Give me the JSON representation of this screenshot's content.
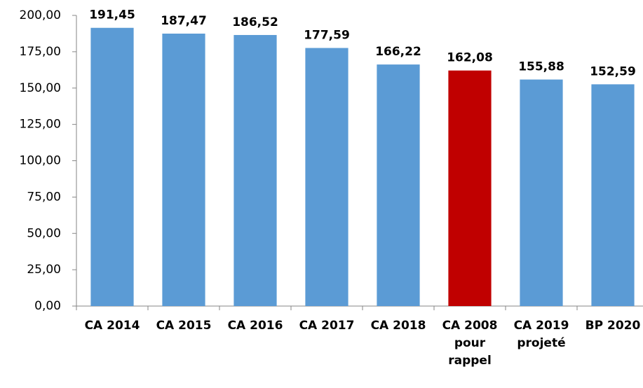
{
  "chart_data": {
    "type": "bar",
    "categories": [
      "CA 2014",
      "CA 2015",
      "CA 2016",
      "CA 2017",
      "CA 2018",
      "CA 2008 pour rappel",
      "CA 2019 projeté",
      "BP 2020"
    ],
    "values": [
      191.45,
      187.47,
      186.52,
      177.59,
      166.22,
      162.08,
      155.88,
      152.59
    ],
    "value_labels": [
      "191,45",
      "187,47",
      "186,52",
      "177,59",
      "166,22",
      "162,08",
      "155,88",
      "152,59"
    ],
    "colors": [
      "#5b9bd5",
      "#5b9bd5",
      "#5b9bd5",
      "#5b9bd5",
      "#5b9bd5",
      "#c00000",
      "#5b9bd5",
      "#5b9bd5"
    ],
    "ylim": [
      0,
      200
    ],
    "yticks": [
      {
        "value": 0,
        "label": "0,00"
      },
      {
        "value": 25,
        "label": "25,00"
      },
      {
        "value": 50,
        "label": "50,00"
      },
      {
        "value": 75,
        "label": "75,00"
      },
      {
        "value": 100,
        "label": "100,00"
      },
      {
        "value": 125,
        "label": "125,00"
      },
      {
        "value": 150,
        "label": "150,00"
      },
      {
        "value": 175,
        "label": "175,00"
      },
      {
        "value": 200,
        "label": "200,00"
      }
    ],
    "grid": false
  }
}
